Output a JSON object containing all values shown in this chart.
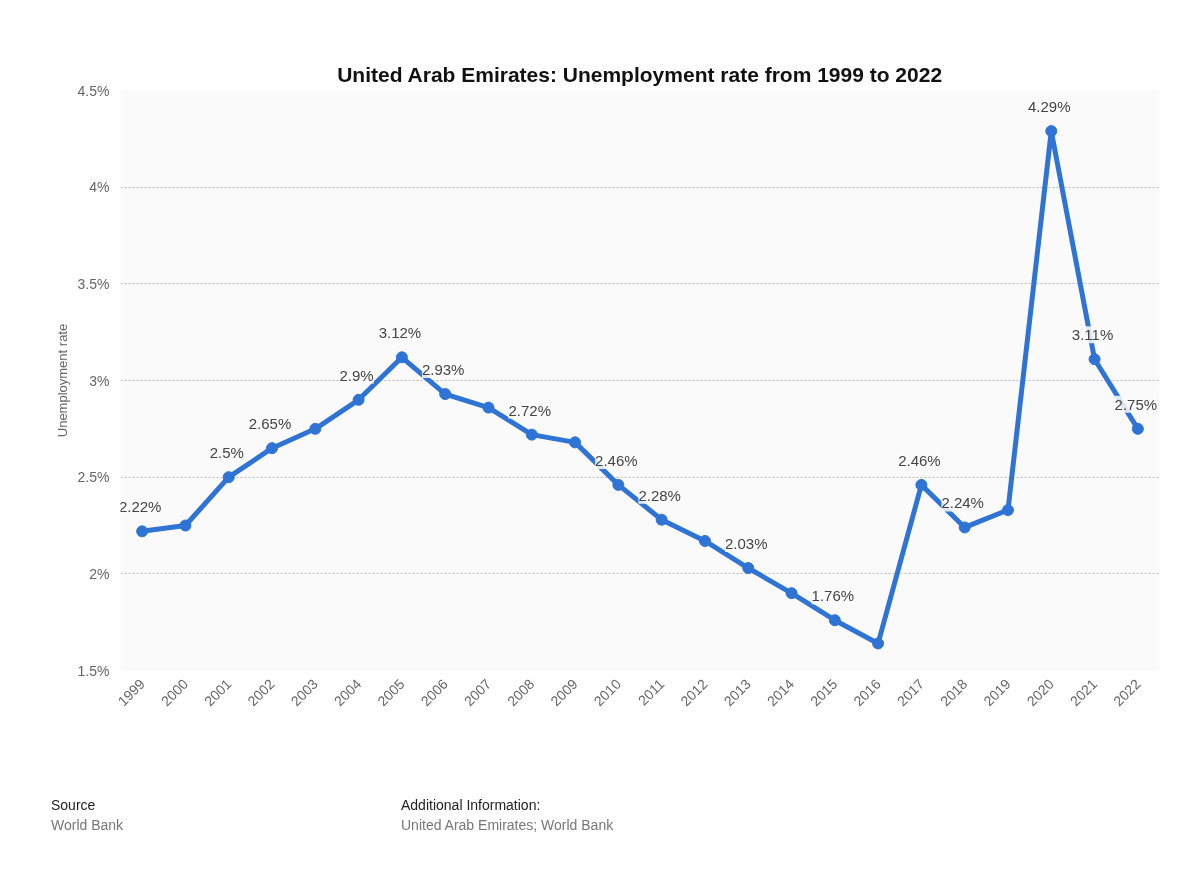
{
  "chart_data": {
    "type": "line",
    "title": "United Arab Emirates: Unemployment rate from 1999 to 2022",
    "ylabel": "Unemployment rate",
    "categories": [
      "1999",
      "2000",
      "2001",
      "2002",
      "2003",
      "2004",
      "2005",
      "2006",
      "2007",
      "2008",
      "2009",
      "2010",
      "2011",
      "2012",
      "2013",
      "2014",
      "2015",
      "2016",
      "2017",
      "2018",
      "2019",
      "2020",
      "2021",
      "2022"
    ],
    "series": [
      {
        "color": "#2f74d5",
        "values": [
          2.22,
          2.25,
          2.5,
          2.65,
          2.75,
          2.9,
          3.12,
          2.93,
          2.86,
          2.72,
          2.68,
          2.46,
          2.28,
          2.17,
          2.03,
          1.9,
          1.76,
          1.64,
          2.46,
          2.24,
          2.33,
          4.29,
          3.11,
          2.75
        ],
        "value_labels": [
          "2.22%",
          null,
          "2.5%",
          "2.65%",
          null,
          "2.9%",
          "3.12%",
          "2.93%",
          null,
          "2.72%",
          null,
          "2.46%",
          "2.28%",
          null,
          "2.03%",
          null,
          "1.76%",
          null,
          "2.46%",
          "2.24%",
          null,
          "4.29%",
          "3.11%",
          "2.75%"
        ]
      }
    ],
    "ylim": [
      1.5,
      4.5
    ],
    "yticks": [
      {
        "value": 1.5,
        "label": "1.5%"
      },
      {
        "value": 2,
        "label": "2%"
      },
      {
        "value": 2.5,
        "label": "2.5%"
      },
      {
        "value": 3,
        "label": "3%"
      },
      {
        "value": 3.5,
        "label": "3.5%"
      },
      {
        "value": 4,
        "label": "4%"
      },
      {
        "value": 4.5,
        "label": "4.5%"
      }
    ],
    "grid": "y",
    "marker": "circle",
    "line_style": "solid",
    "annotations": [
      "Source",
      "World Bank",
      "Additional Information:",
      "United Arab Emirates; World Bank"
    ]
  }
}
